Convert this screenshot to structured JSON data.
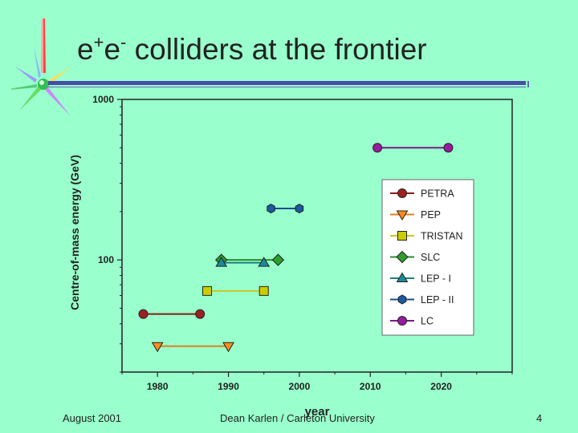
{
  "slide": {
    "title_e1": "e",
    "title_sup1": "+",
    "title_e2": "e",
    "title_sup2": "-",
    "title_rest": " colliders at the frontier",
    "footer_left": "August 2001",
    "footer_center": "Dean Karlen / Carleton University",
    "footer_right": "4"
  },
  "colors": {
    "background": "#99ffcc",
    "title_rule": "#4a4aa8"
  },
  "chart_data": {
    "type": "line",
    "xlabel": "year",
    "ylabel": "Centre-of-mass energy (GeV)",
    "xlim": [
      1975,
      2030
    ],
    "ylim": [
      20,
      1000
    ],
    "yscale": "log",
    "xticks": [
      1980,
      1990,
      2000,
      2010,
      2020
    ],
    "yticks": [
      100,
      1000
    ],
    "grid": false,
    "legend_placement": "right",
    "series": [
      {
        "name": "PETRA",
        "color": "#a02020",
        "line": "#8b1a1a",
        "marker": "circle",
        "x": [
          1978,
          1986
        ],
        "y": [
          46,
          46
        ]
      },
      {
        "name": "PEP",
        "color": "#ff8c1a",
        "line": "#e08020",
        "marker": "triangle-down",
        "x": [
          1980,
          1990
        ],
        "y": [
          29,
          29
        ]
      },
      {
        "name": "TRISTAN",
        "color": "#cccc00",
        "line": "#c8c820",
        "marker": "square",
        "x": [
          1987,
          1995
        ],
        "y": [
          64,
          64
        ]
      },
      {
        "name": "SLC",
        "color": "#2e9e2e",
        "line": "#2e8b2e",
        "marker": "diamond",
        "x": [
          1989,
          1997
        ],
        "y": [
          100,
          100
        ]
      },
      {
        "name": "LEP - I",
        "color": "#1a8a9a",
        "line": "#1a8080",
        "marker": "triangle-up",
        "x": [
          1989,
          1995
        ],
        "y": [
          96,
          96
        ]
      },
      {
        "name": "LEP - II",
        "color": "#1a5aa0",
        "line": "#1a4c8c",
        "marker": "hexagon",
        "x": [
          1996,
          2000
        ],
        "y": [
          209,
          209
        ]
      },
      {
        "name": "LC",
        "color": "#9a1aa0",
        "line": "#7a1a8a",
        "marker": "circle",
        "x": [
          2011,
          2021
        ],
        "y": [
          500,
          500
        ]
      }
    ]
  }
}
